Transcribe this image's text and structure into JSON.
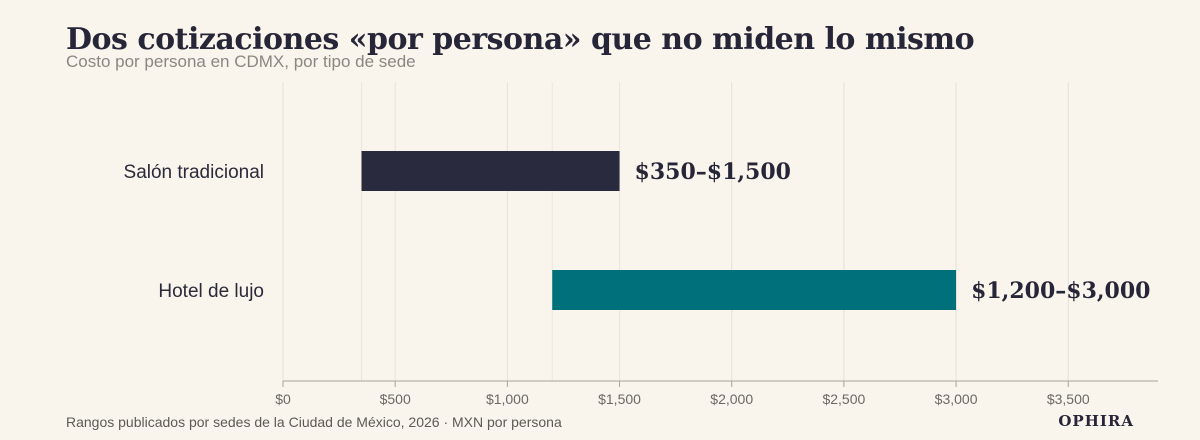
{
  "title": "Dos cotizaciones «por persona» que no miden lo mismo",
  "subtitle": "Costo por persona en CDMX, por tipo de sede",
  "source": "Rangos publicados por sedes de la Ciudad de México, 2026 · MXN por persona",
  "brand": "OPHIRA",
  "chart_data": {
    "type": "bar",
    "orientation": "horizontal-range",
    "categories": [
      "Salón tradicional",
      "Hotel de lujo"
    ],
    "ranges": [
      {
        "category": "Salón tradicional",
        "min": 350,
        "max": 1500,
        "label": "$350–$1,500",
        "color": "#2a2a3e"
      },
      {
        "category": "Hotel de lujo",
        "min": 1200,
        "max": 3000,
        "label": "$1,200–$3,000",
        "color": "#00707a"
      }
    ],
    "xlim": [
      0,
      3900
    ],
    "xticks": [
      0,
      500,
      1000,
      1500,
      2000,
      2500,
      3000,
      3500
    ],
    "xtick_labels": [
      "$0",
      "$500",
      "$1,000",
      "$1,500",
      "$2,000",
      "$2,500",
      "$3,000",
      "$3,500"
    ],
    "grid": true,
    "xlabel": "",
    "ylabel": ""
  }
}
